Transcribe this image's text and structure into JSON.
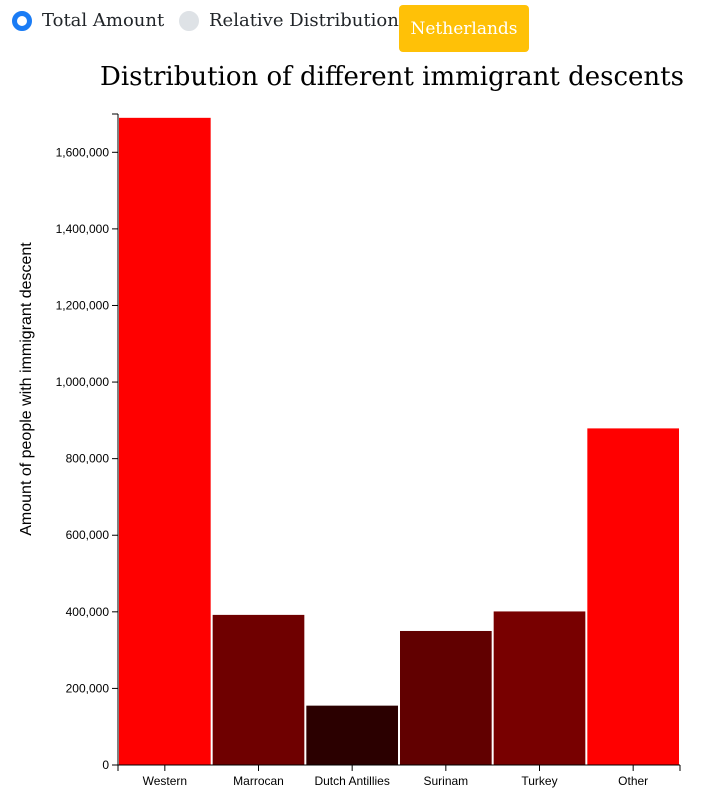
{
  "controls": {
    "radio_total": "Total Amount",
    "radio_relative": "Relative Distribution",
    "selected": "Total Amount",
    "country_button": "Netherlands",
    "button_color": "#ffc107",
    "radio_accent": "#1a7cf5"
  },
  "chart_data": {
    "type": "bar",
    "title": "Distribution of different immigrant descents",
    "xlabel": "",
    "ylabel": "Amount of people with immigrant descent",
    "categories": [
      "Western",
      "Marrocan",
      "Dutch Antillies",
      "Surinam",
      "Turkey",
      "Other"
    ],
    "values": [
      1690000,
      392000,
      155000,
      350000,
      401000,
      879000
    ],
    "colors": [
      "#ff0000",
      "#6f0000",
      "#2b0000",
      "#610000",
      "#780000",
      "#ff0000"
    ],
    "ylim": [
      0,
      1700000
    ],
    "yticks": [
      0,
      200000,
      400000,
      600000,
      800000,
      1000000,
      1200000,
      1400000,
      1600000
    ],
    "ytick_labels": [
      "0",
      "200,000",
      "400,000",
      "600,000",
      "800,000",
      "1,000,000",
      "1,200,000",
      "1,400,000",
      "1,600,000"
    ],
    "grid": false,
    "legend": "none"
  }
}
